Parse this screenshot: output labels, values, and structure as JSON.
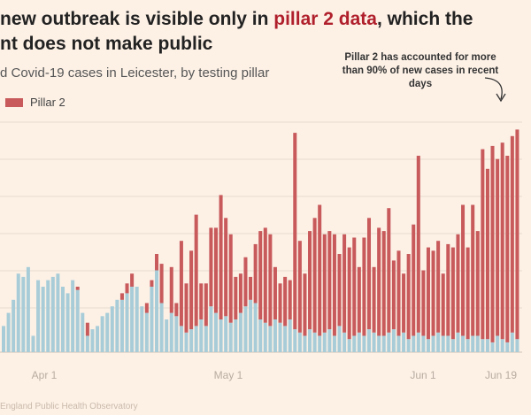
{
  "headline": {
    "line1_start": "new outbreak is visible only in ",
    "line1_highlight": "pillar 2 data",
    "line1_end": ", which the",
    "line2": "nt does not make public"
  },
  "subtitle": "d Covid-19 cases in Leicester, by testing pillar",
  "legend": {
    "label": "Pillar 2",
    "color": "#c85a5c"
  },
  "annotation": "Pillar 2 has accounted for more than 90% of new cases in recent days",
  "footer": "England Public Health Observatory",
  "chart_data": {
    "type": "bar",
    "stacked": true,
    "xticks": [
      "Apr 1",
      "May 1",
      "Jun 1",
      "Jun 19"
    ],
    "colors": {
      "pillar1": "#a9cdd8",
      "pillar2": "#c85a5c"
    },
    "series": [
      {
        "name": "",
        "values": [
          8,
          12,
          16,
          24,
          23,
          26,
          5,
          22,
          20,
          22,
          23,
          24,
          20,
          18,
          22,
          19,
          12,
          5,
          7,
          8,
          11,
          12,
          14,
          16,
          16,
          18,
          20,
          20,
          14,
          12,
          20,
          25,
          15,
          10,
          12,
          11,
          8,
          6,
          7,
          8,
          10,
          8,
          14,
          12,
          10,
          11,
          9,
          10,
          12,
          14,
          16,
          15,
          10,
          9,
          8,
          10,
          9,
          8,
          10,
          7,
          6,
          5,
          7,
          6,
          5,
          6,
          7,
          5,
          8,
          6,
          4,
          5,
          6,
          5,
          7,
          6,
          5,
          5,
          6,
          7,
          5,
          6,
          4,
          5,
          6,
          5,
          4,
          5,
          6,
          5,
          5,
          4,
          6,
          5,
          4,
          5,
          5,
          4,
          4,
          3,
          5,
          4,
          3,
          6,
          4
        ]
      },
      {
        "name": "Pillar 2",
        "values": [
          0,
          0,
          0,
          0,
          0,
          0,
          0,
          0,
          0,
          0,
          0,
          0,
          0,
          0,
          0,
          1,
          0,
          4,
          0,
          0,
          0,
          0,
          0,
          0,
          2,
          3,
          4,
          0,
          0,
          3,
          2,
          5,
          12,
          0,
          14,
          4,
          26,
          15,
          24,
          34,
          11,
          13,
          24,
          26,
          38,
          30,
          27,
          13,
          12,
          15,
          7,
          18,
          27,
          29,
          28,
          16,
          12,
          15,
          12,
          60,
          28,
          19,
          30,
          35,
          40,
          30,
          30,
          31,
          22,
          30,
          28,
          30,
          20,
          30,
          34,
          20,
          33,
          32,
          38,
          21,
          26,
          18,
          26,
          34,
          54,
          20,
          28,
          26,
          28,
          19,
          28,
          28,
          30,
          40,
          28,
          40,
          32,
          58,
          52,
          60,
          54,
          60,
          57,
          60,
          64
        ]
      }
    ]
  }
}
